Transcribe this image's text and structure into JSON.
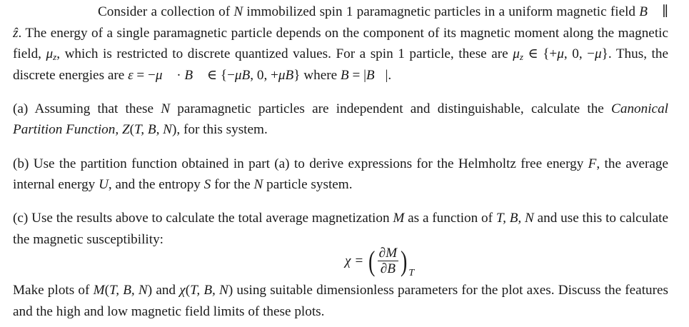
{
  "paragraphs": [
    {
      "id": "intro",
      "segments": [
        {
          "t": "Consider a collection of "
        },
        {
          "m": "N"
        },
        {
          "t": " immobilized spin 1 paramagnetic particles in a uniform magnetic field "
        },
        {
          "m": "B⃗"
        },
        {
          "t": " ∥ "
        },
        {
          "m": "ẑ"
        },
        {
          "t": ". The energy of a single paramagnetic particle depends on the component of its magnetic mo­ment along the magnetic field, "
        },
        {
          "m": "μ"
        },
        {
          "s": "z"
        },
        {
          "t": ", which is restricted to discrete quantized values. For a spin 1 particle, these are "
        },
        {
          "m": "μ"
        },
        {
          "s": "z"
        },
        {
          "t": " ∈ {+"
        },
        {
          "m": "μ"
        },
        {
          "t": ", 0, −"
        },
        {
          "m": "μ"
        },
        {
          "t": "}. Thus, the discrete energies are "
        },
        {
          "m": "ε"
        },
        {
          "t": " = −"
        },
        {
          "m": "μ⃗"
        },
        {
          "t": " · "
        },
        {
          "m": "B⃗"
        },
        {
          "t": " ∈ {−"
        },
        {
          "m": "μB"
        },
        {
          "t": ", 0, +"
        },
        {
          "m": "μB"
        },
        {
          "t": "} where "
        },
        {
          "m": "B"
        },
        {
          "t": " = |"
        },
        {
          "m": "B⃗"
        },
        {
          "t": "|."
        }
      ]
    },
    {
      "id": "part-a",
      "segments": [
        {
          "t": "(a) Assuming that these "
        },
        {
          "m": "N"
        },
        {
          "t": " paramagnetic particles are independent and distinguishable, calculate the "
        },
        {
          "i": "Canonical Partition Function,"
        },
        {
          "t": " "
        },
        {
          "m": "Z"
        },
        {
          "t": "("
        },
        {
          "m": "T, B, N"
        },
        {
          "t": "), for this system."
        }
      ]
    },
    {
      "id": "part-b",
      "segments": [
        {
          "t": "(b) Use the partition function obtained in part (a) to derive expressions for the Helmholtz free energy "
        },
        {
          "m": "F"
        },
        {
          "t": ", the average internal energy "
        },
        {
          "m": "U"
        },
        {
          "t": ", and the entropy "
        },
        {
          "m": "S"
        },
        {
          "t": " for the "
        },
        {
          "m": "N"
        },
        {
          "t": " particle system."
        }
      ]
    },
    {
      "id": "part-c",
      "segments": [
        {
          "t": "(c) Use the results above to calculate the total average magnetization "
        },
        {
          "m": "M"
        },
        {
          "t": " as a function of "
        },
        {
          "m": "T, B, N"
        },
        {
          "t": " and use this to calculate the magnetic susceptibility:"
        }
      ]
    },
    {
      "id": "plots",
      "segments": [
        {
          "t": "Make plots of "
        },
        {
          "m": "M"
        },
        {
          "t": "("
        },
        {
          "m": "T, B, N"
        },
        {
          "t": ") and "
        },
        {
          "m": "χ"
        },
        {
          "t": "("
        },
        {
          "m": "T, B, N"
        },
        {
          "t": ") using suitable dimensionless parameters for the plot axes. Discuss the features and the high and low magnetic field limits of these plots."
        }
      ]
    }
  ],
  "equation": {
    "lhs": "χ",
    "equals": "=",
    "open": "(",
    "numerator": "∂M",
    "denominator": "∂B",
    "close": ")",
    "subscript": "T"
  }
}
